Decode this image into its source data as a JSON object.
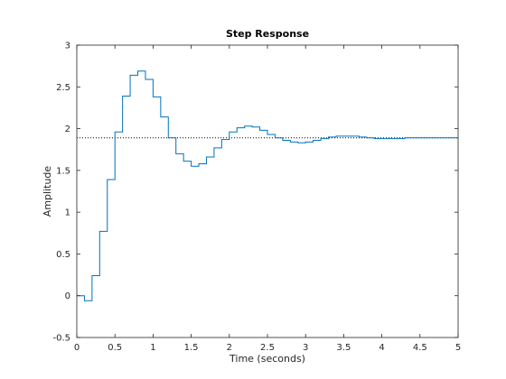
{
  "chart_data": {
    "type": "line",
    "title": "Step Response",
    "xlabel": "Time (seconds)",
    "ylabel": "Amplitude",
    "xlim": [
      0,
      5
    ],
    "ylim": [
      -0.5,
      3
    ],
    "xticks": [
      "0",
      "0.5",
      "1",
      "1.5",
      "2",
      "2.5",
      "3",
      "3.5",
      "4",
      "4.5",
      "5"
    ],
    "yticks": [
      "-0.5",
      "0",
      "0.5",
      "1",
      "1.5",
      "2",
      "2.5",
      "3"
    ],
    "grid": false,
    "legend": "none",
    "sample_time": 0.1,
    "steady_state_value": 1.89,
    "series": [
      {
        "style": "stairs",
        "color": "#0072BD",
        "x": [
          0,
          0.1,
          0.2,
          0.3,
          0.4,
          0.5,
          0.6,
          0.7,
          0.8,
          0.9,
          1.0,
          1.1,
          1.2,
          1.3,
          1.4,
          1.5,
          1.6,
          1.7,
          1.8,
          1.9,
          2.0,
          2.1,
          2.2,
          2.3,
          2.4,
          2.5,
          2.6,
          2.7,
          2.8,
          2.9,
          3.0,
          3.1,
          3.2,
          3.3,
          3.4,
          3.5,
          3.6,
          3.7,
          3.8,
          3.9,
          4.0,
          4.1,
          4.2,
          4.3,
          4.4,
          4.5,
          4.6,
          4.7,
          4.8,
          4.9,
          5.0
        ],
        "y": [
          0,
          -0.06,
          0.24,
          0.77,
          1.39,
          1.96,
          2.39,
          2.64,
          2.69,
          2.59,
          2.38,
          2.14,
          1.89,
          1.7,
          1.61,
          1.55,
          1.58,
          1.66,
          1.77,
          1.87,
          1.96,
          2.01,
          2.03,
          2.02,
          1.98,
          1.93,
          1.89,
          1.86,
          1.84,
          1.83,
          1.84,
          1.86,
          1.88,
          1.9,
          1.91,
          1.91,
          1.91,
          1.9,
          1.89,
          1.88,
          1.88,
          1.88,
          1.88,
          1.89,
          1.89,
          1.89,
          1.89,
          1.89,
          1.89,
          1.89,
          1.89
        ]
      }
    ],
    "axis_color": "#262626",
    "reference_line_color": "#000000"
  }
}
